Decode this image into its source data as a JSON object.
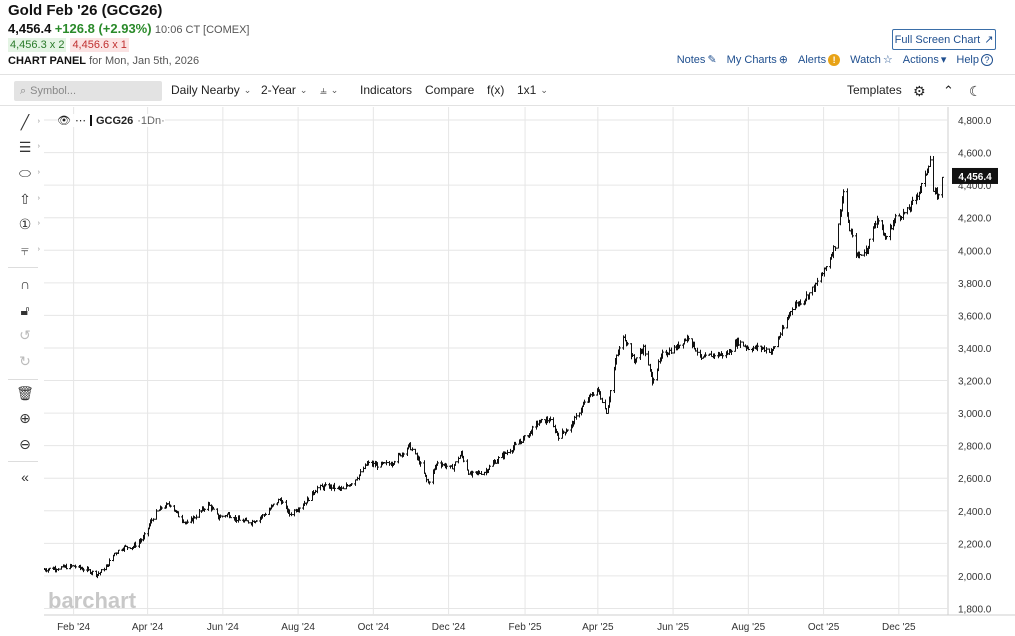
{
  "header": {
    "title": "Gold Feb '26 (GCG26)",
    "last": "4,456.4",
    "change": "+126.8 (+2.93%)",
    "time": "10:06 CT [COMEX]",
    "bid": "4,456.3 x 2",
    "ask": "4,456.6 x 1",
    "panel_label": "CHART PANEL",
    "panel_date": "for Mon, Jan 5th, 2026",
    "fullscreen_label": "Full Screen Chart"
  },
  "toplinks": {
    "notes": "Notes",
    "mycharts": "My Charts",
    "alerts": "Alerts",
    "watch": "Watch",
    "actions": "Actions",
    "help": "Help"
  },
  "toolbar": {
    "search_placeholder": "Symbol...",
    "aggregation": "Daily Nearby",
    "period": "2-Year",
    "indicators": "Indicators",
    "compare": "Compare",
    "fx": "f(x)",
    "layout": "1x1",
    "templates": "Templates"
  },
  "legend": {
    "symbol": "GCG26",
    "sub": "·1Dn·"
  },
  "watermark": "barchart",
  "colors": {
    "link": "#1f4f8f",
    "up": "#2a8a2a",
    "down": "#c03030",
    "bars": "#111111",
    "grid": "#e6e6e6",
    "price_label_bg": "#111111"
  },
  "chart_data": {
    "type": "ohlc",
    "last_price_label": "4,456.4",
    "last_price": 4456.4,
    "ylim": [
      1760,
      4880
    ],
    "y_ticks": [
      {
        "value": 1800,
        "label": "1,800.0"
      },
      {
        "value": 2000,
        "label": "2,000.0"
      },
      {
        "value": 2200,
        "label": "2,200.0"
      },
      {
        "value": 2400,
        "label": "2,400.0"
      },
      {
        "value": 2600,
        "label": "2,600.0"
      },
      {
        "value": 2800,
        "label": "2,800.0"
      },
      {
        "value": 3000,
        "label": "3,000.0"
      },
      {
        "value": 3200,
        "label": "3,200.0"
      },
      {
        "value": 3400,
        "label": "3,400.0"
      },
      {
        "value": 3600,
        "label": "3,600.0"
      },
      {
        "value": 3800,
        "label": "3,800.0"
      },
      {
        "value": 4000,
        "label": "4,000.0"
      },
      {
        "value": 4200,
        "label": "4,200.0"
      },
      {
        "value": 4400,
        "label": "4,400.0"
      },
      {
        "value": 4600,
        "label": "4,600.0"
      },
      {
        "value": 4800,
        "label": "4,800.0"
      }
    ],
    "x_range": [
      "2024-01-08",
      "2026-01-05"
    ],
    "x_ticks": [
      {
        "date": "2024-02-01",
        "label": "Feb '24"
      },
      {
        "date": "2024-04-01",
        "label": "Apr '24"
      },
      {
        "date": "2024-06-01",
        "label": "Jun '24"
      },
      {
        "date": "2024-08-01",
        "label": "Aug '24"
      },
      {
        "date": "2024-10-01",
        "label": "Oct '24"
      },
      {
        "date": "2024-12-01",
        "label": "Dec '24"
      },
      {
        "date": "2025-02-01",
        "label": "Feb '25"
      },
      {
        "date": "2025-04-01",
        "label": "Apr '25"
      },
      {
        "date": "2025-06-01",
        "label": "Jun '25"
      },
      {
        "date": "2025-08-01",
        "label": "Aug '25"
      },
      {
        "date": "2025-10-01",
        "label": "Oct '25"
      },
      {
        "date": "2025-12-01",
        "label": "Dec '25"
      }
    ],
    "path": [
      [
        "2024-01-08",
        2040
      ],
      [
        "2024-01-20",
        2050
      ],
      [
        "2024-02-01",
        2060
      ],
      [
        "2024-02-12",
        2035
      ],
      [
        "2024-02-20",
        2010
      ],
      [
        "2024-02-28",
        2060
      ],
      [
        "2024-03-05",
        2140
      ],
      [
        "2024-03-12",
        2175
      ],
      [
        "2024-03-20",
        2180
      ],
      [
        "2024-03-28",
        2230
      ],
      [
        "2024-04-05",
        2360
      ],
      [
        "2024-04-12",
        2420
      ],
      [
        "2024-04-19",
        2440
      ],
      [
        "2024-04-26",
        2370
      ],
      [
        "2024-05-03",
        2320
      ],
      [
        "2024-05-10",
        2370
      ],
      [
        "2024-05-20",
        2440
      ],
      [
        "2024-05-28",
        2360
      ],
      [
        "2024-06-05",
        2380
      ],
      [
        "2024-06-14",
        2340
      ],
      [
        "2024-06-24",
        2330
      ],
      [
        "2024-07-03",
        2370
      ],
      [
        "2024-07-17",
        2470
      ],
      [
        "2024-07-25",
        2380
      ],
      [
        "2024-08-05",
        2440
      ],
      [
        "2024-08-16",
        2540
      ],
      [
        "2024-08-26",
        2550
      ],
      [
        "2024-09-06",
        2530
      ],
      [
        "2024-09-17",
        2600
      ],
      [
        "2024-09-26",
        2690
      ],
      [
        "2024-10-04",
        2680
      ],
      [
        "2024-10-15",
        2690
      ],
      [
        "2024-10-30",
        2800
      ],
      [
        "2024-11-07",
        2700
      ],
      [
        "2024-11-14",
        2570
      ],
      [
        "2024-11-22",
        2700
      ],
      [
        "2024-12-03",
        2660
      ],
      [
        "2024-12-11",
        2750
      ],
      [
        "2024-12-18",
        2620
      ],
      [
        "2024-12-30",
        2640
      ],
      [
        "2025-01-10",
        2720
      ],
      [
        "2025-01-24",
        2800
      ],
      [
        "2025-02-05",
        2880
      ],
      [
        "2025-02-11",
        2940
      ],
      [
        "2025-02-20",
        2960
      ],
      [
        "2025-02-28",
        2860
      ],
      [
        "2025-03-10",
        2920
      ],
      [
        "2025-03-20",
        3050
      ],
      [
        "2025-03-31",
        3150
      ],
      [
        "2025-04-08",
        3010
      ],
      [
        "2025-04-16",
        3350
      ],
      [
        "2025-04-22",
        3480
      ],
      [
        "2025-04-30",
        3320
      ],
      [
        "2025-05-08",
        3400
      ],
      [
        "2025-05-15",
        3200
      ],
      [
        "2025-05-23",
        3360
      ],
      [
        "2025-06-03",
        3400
      ],
      [
        "2025-06-13",
        3470
      ],
      [
        "2025-06-24",
        3330
      ],
      [
        "2025-07-03",
        3360
      ],
      [
        "2025-07-14",
        3360
      ],
      [
        "2025-07-23",
        3440
      ],
      [
        "2025-08-01",
        3400
      ],
      [
        "2025-08-12",
        3400
      ],
      [
        "2025-08-20",
        3380
      ],
      [
        "2025-08-29",
        3520
      ],
      [
        "2025-09-05",
        3650
      ],
      [
        "2025-09-15",
        3700
      ],
      [
        "2025-09-25",
        3790
      ],
      [
        "2025-10-03",
        3900
      ],
      [
        "2025-10-10",
        4030
      ],
      [
        "2025-10-17",
        4360
      ],
      [
        "2025-10-21",
        4160
      ],
      [
        "2025-10-28",
        3960
      ],
      [
        "2025-11-05",
        4010
      ],
      [
        "2025-11-13",
        4200
      ],
      [
        "2025-11-20",
        4070
      ],
      [
        "2025-11-28",
        4200
      ],
      [
        "2025-12-08",
        4240
      ],
      [
        "2025-12-15",
        4330
      ],
      [
        "2025-12-22",
        4450
      ],
      [
        "2025-12-26",
        4560
      ],
      [
        "2025-12-29",
        4360
      ],
      [
        "2026-01-02",
        4330
      ],
      [
        "2026-01-05",
        4456
      ]
    ]
  }
}
